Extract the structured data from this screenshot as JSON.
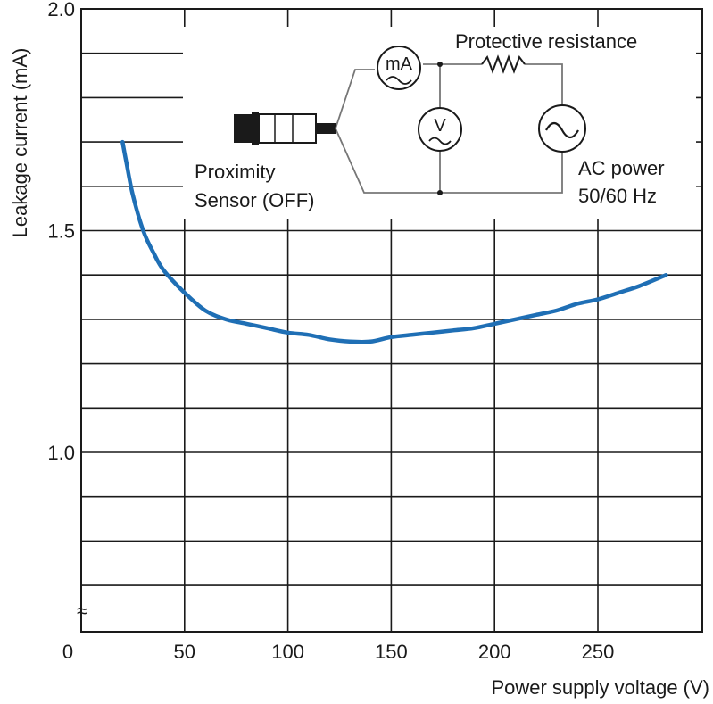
{
  "chart_data": {
    "type": "line",
    "xlabel": "Power supply voltage (V)",
    "ylabel": "Leakage current (mA)",
    "x_ticks": [
      0,
      50,
      100,
      150,
      200,
      250
    ],
    "y_ticks": [
      {
        "value": 2.0,
        "label": "2.0"
      },
      {
        "value": 1.5,
        "label": "1.5"
      },
      {
        "value": 1.0,
        "label": "1.0"
      }
    ],
    "xlim": [
      0,
      300
    ],
    "ylim": [
      0.6,
      2.0
    ],
    "grid": true,
    "axis_break_symbol": "≈",
    "series": [
      {
        "color": "#1f6fb5",
        "x": [
          20,
          22,
          25,
          30,
          35,
          40,
          50,
          60,
          70,
          80,
          90,
          100,
          110,
          120,
          130,
          140,
          150,
          160,
          170,
          180,
          190,
          200,
          210,
          220,
          230,
          240,
          250,
          260,
          270,
          283
        ],
        "y": [
          1.7,
          1.65,
          1.58,
          1.5,
          1.45,
          1.41,
          1.36,
          1.32,
          1.3,
          1.29,
          1.28,
          1.27,
          1.265,
          1.255,
          1.25,
          1.25,
          1.26,
          1.265,
          1.27,
          1.275,
          1.28,
          1.29,
          1.3,
          1.31,
          1.32,
          1.335,
          1.345,
          1.36,
          1.375,
          1.4
        ]
      }
    ]
  },
  "circuit": {
    "sensor_label_line1": "Proximity",
    "sensor_label_line2": "Sensor (OFF)",
    "ammeter_label": "mA",
    "voltmeter_label": "V",
    "resistor_label": "Protective resistance",
    "power_label_line1": "AC power",
    "power_label_line2": "50/60 Hz",
    "ac_symbol": "~"
  }
}
